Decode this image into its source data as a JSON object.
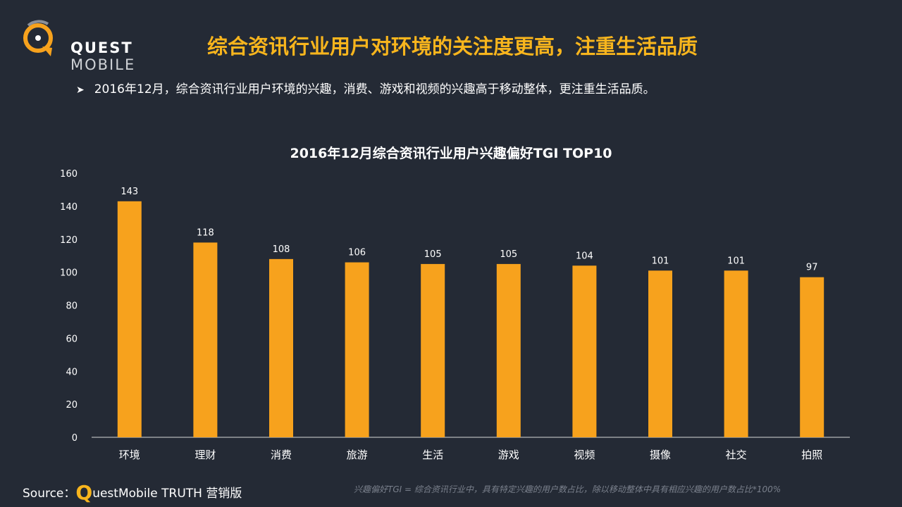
{
  "brand": {
    "name_bold": "QUEST",
    "name_light": "MOBILE"
  },
  "title": "综合资讯行业用户对环境的关注度更高，注重生活品质",
  "bullet": "2016年12月，综合资讯行业用户环境的兴趣，消费、游戏和视频的兴趣高于移动整体，更注重生活品质。",
  "colors": {
    "accent": "#f8b51d",
    "bar": "#f7a21d",
    "background": "#242a35"
  },
  "chart_data": {
    "type": "bar",
    "title": "2016年12月综合资讯行业用户兴趣偏好TGI TOP10",
    "categories": [
      "环境",
      "理财",
      "消费",
      "旅游",
      "生活",
      "游戏",
      "视频",
      "摄像",
      "社交",
      "拍照"
    ],
    "values": [
      143,
      118,
      108,
      106,
      105,
      105,
      104,
      101,
      101,
      97
    ],
    "yticks": [
      0,
      20,
      40,
      60,
      80,
      100,
      120,
      140,
      160
    ],
    "ylim": [
      0,
      160
    ],
    "xlabel": "",
    "ylabel": "",
    "grid": false,
    "legend": "none"
  },
  "footer": {
    "source_prefix": "Source：",
    "source_q": "Q",
    "source_rest": "uestMobile TRUTH 营销版",
    "note": "兴趣偏好TGI = 综合资讯行业中，具有特定兴趣的用户数占比，除以移动整体中具有相应兴趣的用户数占比*100%"
  }
}
